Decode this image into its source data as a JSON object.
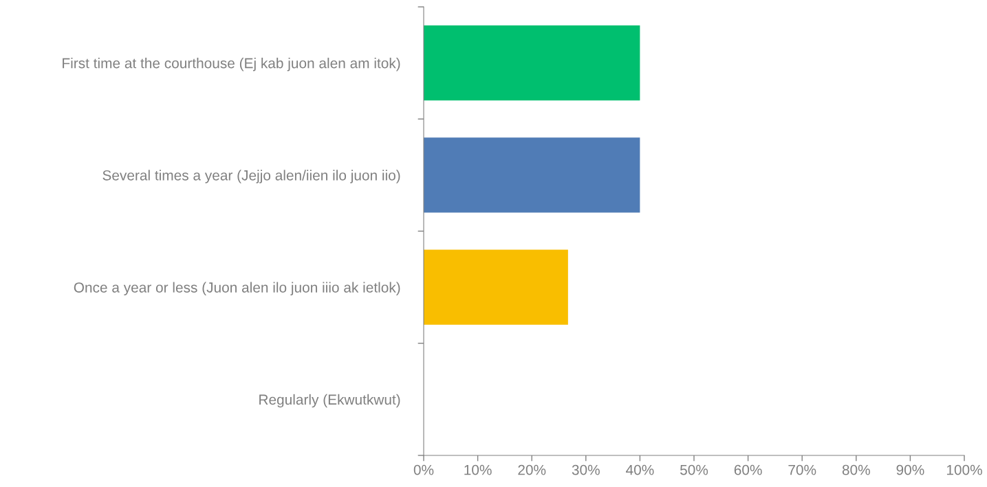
{
  "chart_data": {
    "type": "bar",
    "orientation": "horizontal",
    "categories": [
      "First time at the courthouse (Ej kab juon alen am itok)",
      "Several times a year (Jejjo alen/iien ilo juon iio)",
      "Once a year or less (Juon alen ilo juon iiio ak ietlok)",
      "Regularly (Ekwutkwut)"
    ],
    "values": [
      40,
      40,
      26.7,
      0
    ],
    "colors": [
      "#00bf6f",
      "#507cb6",
      "#f9be00",
      "#a0a0a0"
    ],
    "xlim": [
      0,
      100
    ],
    "xticks": [
      {
        "value": 0,
        "label": "0%"
      },
      {
        "value": 10,
        "label": "10%"
      },
      {
        "value": 20,
        "label": "20%"
      },
      {
        "value": 30,
        "label": "30%"
      },
      {
        "value": 40,
        "label": "40%"
      },
      {
        "value": 50,
        "label": "50%"
      },
      {
        "value": 60,
        "label": "60%"
      },
      {
        "value": 70,
        "label": "70%"
      },
      {
        "value": 80,
        "label": "80%"
      },
      {
        "value": 90,
        "label": "90%"
      },
      {
        "value": 100,
        "label": "100%"
      }
    ],
    "grid": false,
    "legend": false
  }
}
